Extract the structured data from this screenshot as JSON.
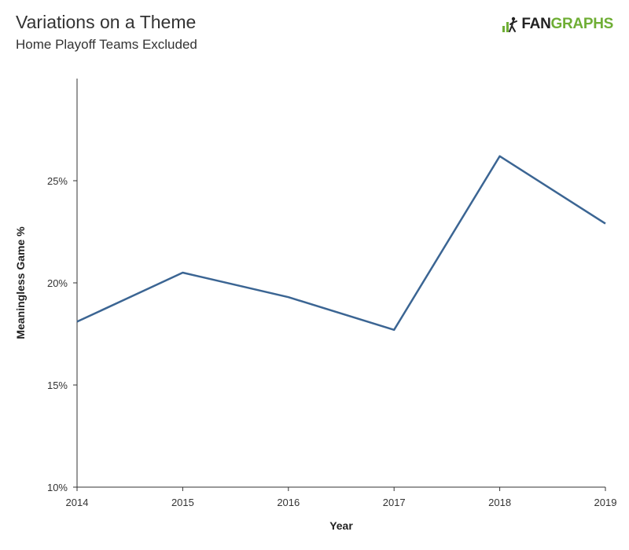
{
  "header": {
    "title": "Variations on a Theme",
    "subtitle": "Home Playoff Teams Excluded"
  },
  "logo": {
    "text_dark": "FAN",
    "text_green": "GRAPHS",
    "accent_color": "#6fae35"
  },
  "chart_data": {
    "type": "line",
    "title": "Variations on a Theme",
    "subtitle": "Home Playoff Teams Excluded",
    "xlabel": "Year",
    "ylabel": "Meaningless Game %",
    "x": [
      2014,
      2015,
      2016,
      2017,
      2018,
      2019
    ],
    "series": [
      {
        "values": [
          18.1,
          20.5,
          19.3,
          17.7,
          26.2,
          22.9
        ],
        "color": "#3b6593"
      }
    ],
    "xticks": [
      "2014",
      "2015",
      "2016",
      "2017",
      "2018",
      "2019"
    ],
    "yticks": [
      10,
      15,
      20,
      25
    ],
    "ytick_labels": [
      "10%",
      "15%",
      "20%",
      "25%"
    ],
    "ylim": [
      10,
      30
    ],
    "grid": false,
    "legend": "none"
  }
}
